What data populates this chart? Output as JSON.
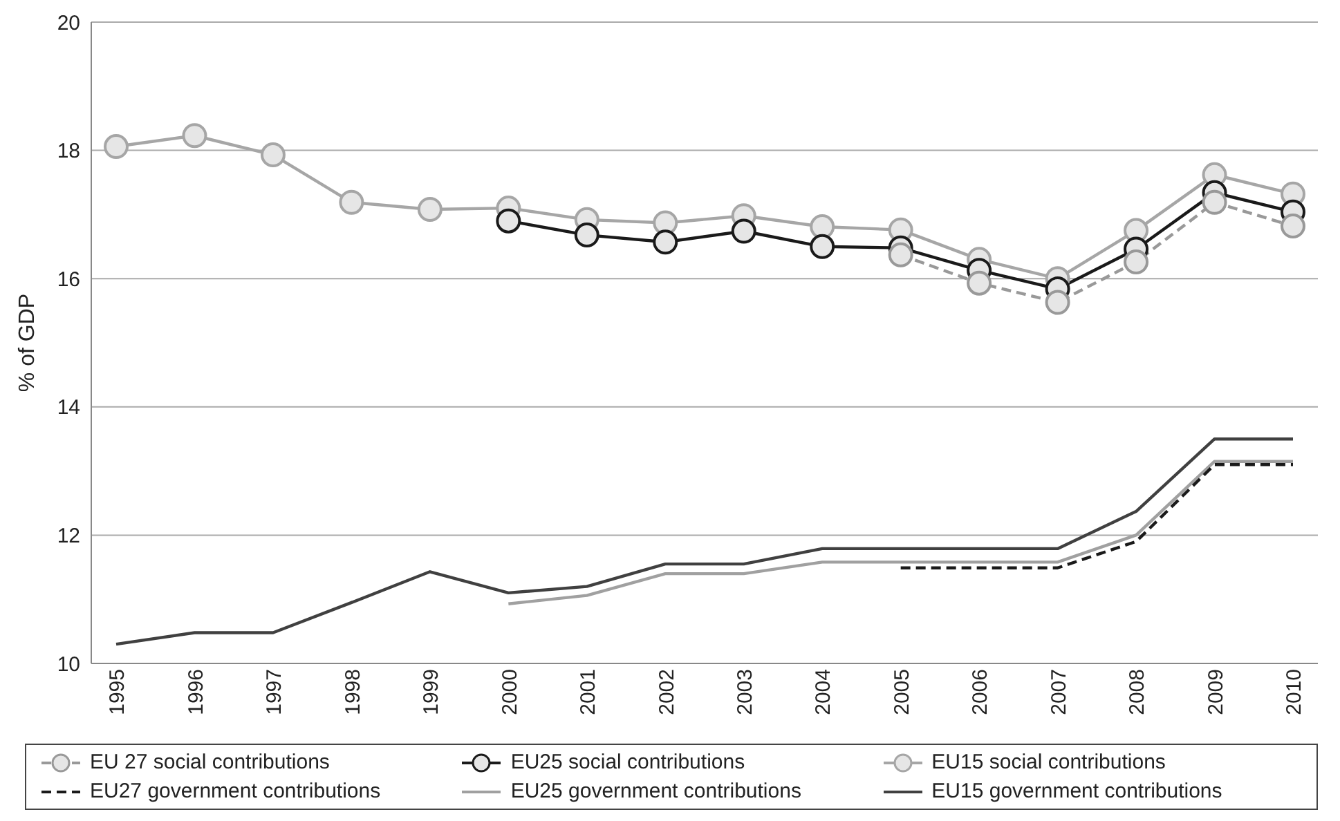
{
  "chart_data": {
    "type": "line",
    "ylabel": "% of GDP",
    "categories": [
      "1995",
      "1996",
      "1997",
      "1998",
      "1999",
      "2000",
      "2001",
      "2002",
      "2003",
      "2004",
      "2005",
      "2006",
      "2007",
      "2008",
      "2009",
      "2010"
    ],
    "series": [
      {
        "name": "EU 27 social contributions",
        "color": "#999999",
        "marker": "circle",
        "line_style": "dashed",
        "values": [
          null,
          null,
          null,
          null,
          null,
          null,
          null,
          null,
          null,
          null,
          16.37,
          15.93,
          15.63,
          16.26,
          17.19,
          16.82
        ]
      },
      {
        "name": "EU25 social contributions",
        "color": "#1a1a1a",
        "marker": "circle",
        "line_style": "solid",
        "values": [
          null,
          null,
          null,
          null,
          null,
          16.9,
          16.68,
          16.57,
          16.74,
          16.5,
          16.48,
          16.13,
          15.84,
          16.46,
          17.34,
          17.04
        ]
      },
      {
        "name": "EU15 social contributions",
        "color": "#a6a6a6",
        "marker": "circle",
        "line_style": "solid",
        "values": [
          18.06,
          18.23,
          17.93,
          17.19,
          17.08,
          17.1,
          16.92,
          16.87,
          16.98,
          16.81,
          16.76,
          16.3,
          16.0,
          16.75,
          17.62,
          17.32
        ]
      },
      {
        "name": "EU27 government contributions",
        "color": "#1a1a1a",
        "marker": "none",
        "line_style": "dashed",
        "values": [
          null,
          null,
          null,
          null,
          null,
          null,
          null,
          null,
          null,
          null,
          11.49,
          11.49,
          11.49,
          11.9,
          13.1,
          13.1
        ]
      },
      {
        "name": "EU25 government contributions",
        "color": "#a0a0a0",
        "marker": "none",
        "line_style": "solid",
        "values": [
          null,
          null,
          null,
          null,
          null,
          10.93,
          11.06,
          11.4,
          11.4,
          11.58,
          11.58,
          11.58,
          11.58,
          12.0,
          13.15,
          13.15
        ]
      },
      {
        "name": "EU15 government contributions",
        "color": "#404040",
        "marker": "none",
        "line_style": "solid",
        "values": [
          10.3,
          10.48,
          10.48,
          10.95,
          11.43,
          11.1,
          11.2,
          11.55,
          11.55,
          11.79,
          11.79,
          11.79,
          11.79,
          12.37,
          13.5,
          13.5
        ]
      }
    ],
    "ylim": [
      10,
      20
    ],
    "yticks": [
      10,
      12,
      14,
      16,
      18,
      20
    ],
    "grid": "y",
    "legend": "bottom"
  }
}
